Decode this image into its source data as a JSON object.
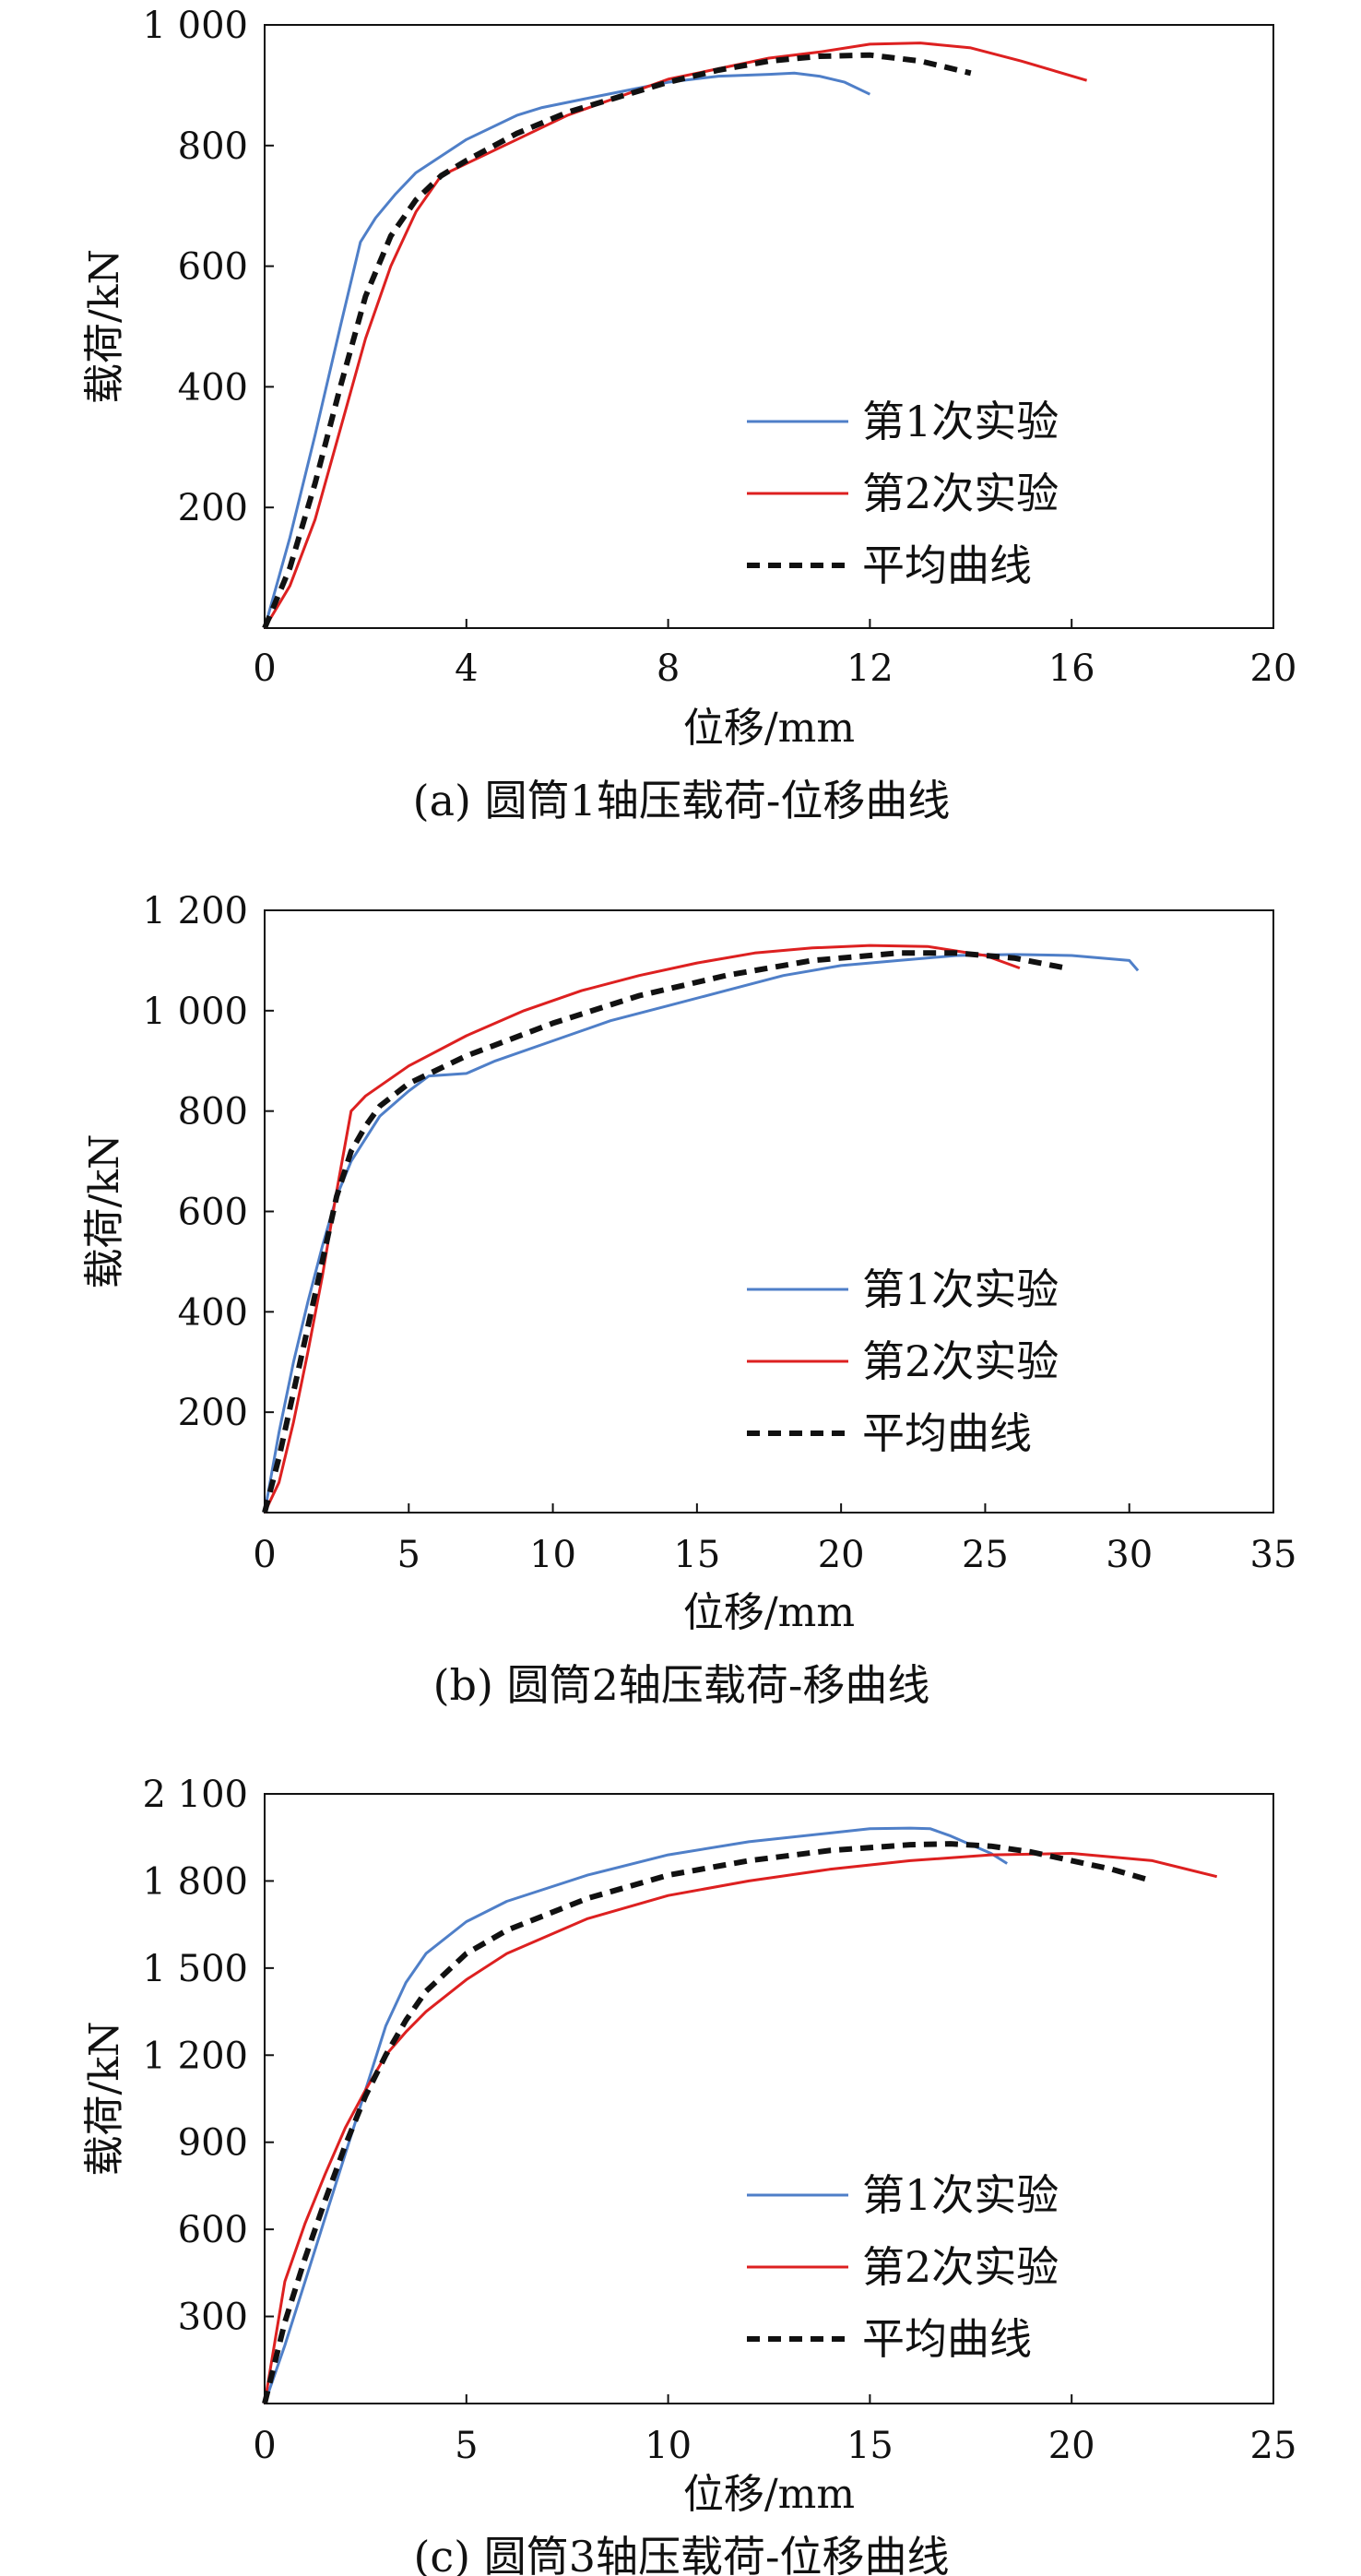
{
  "chart_data": [
    {
      "type": "line",
      "caption": "(a) 圆筒1轴压载荷-位移曲线",
      "xlabel": "位移/mm",
      "ylabel": "载荷/kN",
      "xlim": [
        0,
        20
      ],
      "ylim": [
        0,
        1000
      ],
      "xticks": [
        0,
        4,
        8,
        12,
        16,
        20
      ],
      "yticks": [
        200,
        400,
        600,
        800,
        1000
      ],
      "xtick_labels": [
        "0",
        "4",
        "8",
        "12",
        "16",
        "20"
      ],
      "ytick_labels": [
        "200",
        "400",
        "600",
        "800",
        "1 000"
      ],
      "grid": false,
      "legend_position": "lower-right",
      "series": [
        {
          "name": "第1次实验",
          "color": "#4f7fc8",
          "style": "solid",
          "x": [
            0,
            0.5,
            1,
            1.5,
            1.9,
            2.2,
            2.6,
            3,
            4,
            5,
            5.5,
            6.5,
            8,
            9,
            10,
            10.5,
            11,
            11.5,
            12
          ],
          "y": [
            0,
            150,
            320,
            500,
            640,
            680,
            720,
            755,
            810,
            850,
            863,
            880,
            905,
            915,
            918,
            920,
            915,
            905,
            885
          ]
        },
        {
          "name": "第2次实验",
          "color": "#dd2020",
          "style": "solid",
          "x": [
            0,
            0.5,
            1,
            1.5,
            2,
            2.5,
            3,
            3.5,
            4,
            5,
            6,
            8,
            10,
            11,
            12,
            13,
            14,
            15,
            16.3
          ],
          "y": [
            0,
            70,
            180,
            330,
            480,
            600,
            690,
            750,
            770,
            810,
            850,
            910,
            945,
            955,
            968,
            970,
            962,
            940,
            908
          ]
        },
        {
          "name": "平均曲线",
          "color": "#111111",
          "style": "dashed",
          "x": [
            0,
            0.5,
            1,
            1.5,
            2,
            2.5,
            3,
            3.5,
            4,
            5,
            6,
            8,
            9,
            10,
            11,
            12,
            13,
            14
          ],
          "y": [
            0,
            100,
            240,
            400,
            550,
            650,
            710,
            750,
            775,
            820,
            855,
            905,
            925,
            940,
            948,
            950,
            940,
            920
          ]
        }
      ]
    },
    {
      "type": "line",
      "caption": "(b) 圆筒2轴压载荷-移曲线",
      "xlabel": "位移/mm",
      "ylabel": "载荷/kN",
      "xlim": [
        0,
        35
      ],
      "ylim": [
        0,
        1200
      ],
      "xticks": [
        0,
        5,
        10,
        15,
        20,
        25,
        30,
        35
      ],
      "yticks": [
        200,
        400,
        600,
        800,
        1000,
        1200
      ],
      "xtick_labels": [
        "0",
        "5",
        "10",
        "15",
        "20",
        "25",
        "30",
        "35"
      ],
      "ytick_labels": [
        "200",
        "400",
        "600",
        "800",
        "1 000",
        "1 200"
      ],
      "grid": false,
      "legend_position": "lower-right",
      "series": [
        {
          "name": "第1次实验",
          "color": "#4f7fc8",
          "style": "solid",
          "x": [
            0,
            0.5,
            1,
            1.5,
            2,
            2.5,
            3,
            4,
            5,
            5.7,
            7,
            8,
            10,
            12,
            14,
            16,
            18,
            20,
            22,
            24,
            26,
            28,
            30,
            30.3
          ],
          "y": [
            0,
            160,
            300,
            420,
            530,
            630,
            700,
            790,
            840,
            870,
            875,
            900,
            940,
            980,
            1010,
            1040,
            1070,
            1090,
            1100,
            1110,
            1112,
            1110,
            1100,
            1080
          ]
        },
        {
          "name": "第2次实验",
          "color": "#dd2020",
          "style": "solid",
          "x": [
            0,
            0.5,
            1,
            1.5,
            2,
            2.5,
            3,
            3.5,
            5,
            7,
            9,
            11,
            13,
            15,
            17,
            19,
            21,
            23,
            25,
            26.2
          ],
          "y": [
            0,
            60,
            180,
            320,
            470,
            640,
            800,
            830,
            890,
            950,
            1000,
            1040,
            1070,
            1095,
            1115,
            1125,
            1130,
            1128,
            1110,
            1085
          ]
        },
        {
          "name": "平均曲线",
          "color": "#111111",
          "style": "dashed",
          "x": [
            0,
            0.5,
            1,
            1.5,
            2,
            2.5,
            3,
            3.5,
            4,
            5,
            7,
            10,
            13,
            16,
            19,
            22,
            24,
            26,
            27.8
          ],
          "y": [
            0,
            110,
            240,
            370,
            500,
            630,
            720,
            770,
            810,
            855,
            910,
            975,
            1030,
            1070,
            1100,
            1115,
            1115,
            1105,
            1085
          ]
        }
      ]
    },
    {
      "type": "line",
      "caption": "(c) 圆筒3轴压载荷-位移曲线",
      "xlabel": "位移/mm",
      "ylabel": "载荷/kN",
      "xlim": [
        0,
        25
      ],
      "ylim": [
        0,
        2100
      ],
      "xticks": [
        0,
        5,
        10,
        15,
        20,
        25
      ],
      "yticks": [
        300,
        600,
        900,
        1200,
        1500,
        1800,
        2100
      ],
      "xtick_labels": [
        "0",
        "5",
        "10",
        "15",
        "20",
        "25"
      ],
      "ytick_labels": [
        "300",
        "600",
        "900",
        "1 200",
        "1 500",
        "1 800",
        "2 100"
      ],
      "grid": false,
      "legend_position": "lower-right",
      "series": [
        {
          "name": "第1次实验",
          "color": "#4f7fc8",
          "style": "solid",
          "x": [
            0,
            0.5,
            1,
            1.5,
            2,
            2.5,
            3,
            3.5,
            4,
            5,
            6,
            8,
            10,
            12,
            14,
            15,
            16,
            16.5,
            17,
            17.5,
            18,
            18.4
          ],
          "y": [
            0,
            200,
            420,
            640,
            860,
            1080,
            1300,
            1450,
            1550,
            1660,
            1730,
            1820,
            1890,
            1935,
            1965,
            1980,
            1982,
            1980,
            1955,
            1925,
            1895,
            1860
          ]
        },
        {
          "name": "第2次实验",
          "color": "#dd2020",
          "style": "solid",
          "x": [
            0,
            0.5,
            1,
            1.5,
            2,
            2.5,
            3,
            3.5,
            4,
            5,
            6,
            8,
            10,
            12,
            14,
            16,
            18,
            20,
            22,
            23.6
          ],
          "y": [
            0,
            420,
            620,
            790,
            950,
            1080,
            1200,
            1280,
            1350,
            1460,
            1550,
            1670,
            1750,
            1800,
            1840,
            1870,
            1890,
            1895,
            1870,
            1815
          ]
        },
        {
          "name": "平均曲线",
          "color": "#111111",
          "style": "dashed",
          "x": [
            0,
            0.5,
            1,
            1.5,
            2,
            2.5,
            3,
            3.5,
            4,
            5,
            6,
            8,
            10,
            12,
            14,
            16,
            17,
            18,
            19,
            20,
            21,
            22
          ],
          "y": [
            0,
            280,
            500,
            700,
            890,
            1060,
            1200,
            1320,
            1420,
            1550,
            1630,
            1740,
            1820,
            1870,
            1905,
            1925,
            1928,
            1920,
            1900,
            1870,
            1840,
            1800
          ]
        }
      ]
    }
  ]
}
